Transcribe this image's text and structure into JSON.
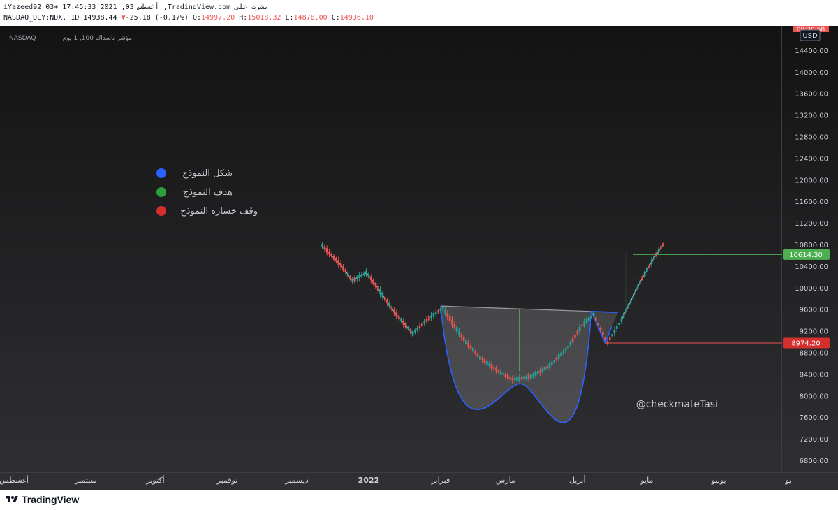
{
  "header": {
    "line1": "iYazeed92 03+ 17:45:33 2021 ,03 أغسطس ,TradingView.com نشرت على",
    "symbol": "NASDAQ_DLY:NDX, 1D",
    "last": "14938.44",
    "change_arrow": "▼",
    "change": "-25.18 (-0.17%)",
    "ohlc": [
      {
        "label": "O:",
        "value": "14997.20"
      },
      {
        "label": "H:",
        "value": "15018.32"
      },
      {
        "label": "L:",
        "value": "14878.00"
      },
      {
        "label": "C:",
        "value": "14936.10"
      }
    ]
  },
  "chart_header": {
    "exchange": "NASDAQ",
    "title": "مؤشر ناسداك 100, 1 يوم,"
  },
  "price_axis": {
    "currency": "USD",
    "time_label": "08:30:58",
    "ticks": [
      "6800.00",
      "7200.00",
      "7600.00",
      "8000.00",
      "8400.00",
      "8800.00",
      "9200.00",
      "9600.00",
      "10000.00",
      "10400.00",
      "10800.00",
      "11200.00",
      "11600.00",
      "12000.00",
      "12400.00",
      "12800.00",
      "13200.00",
      "13600.00",
      "14000.00",
      "14400.00"
    ],
    "target_label": "10614.30",
    "stop_label": "8974.20"
  },
  "time_axis": {
    "labels": [
      "أغسطس",
      "سبتمبر",
      "أكتوبر",
      "نوفمبر",
      "ديسمبر",
      "2022",
      "فبراير",
      "مارس",
      "أبريل",
      "مايو",
      "يونيو",
      "يو"
    ]
  },
  "legend": [
    {
      "label": "شكل النموذج",
      "color": "#2962ff"
    },
    {
      "label": "هدف النموذج",
      "color": "#2e9e3c"
    },
    {
      "label": "وقف خساره النموذج",
      "color": "#d32f2f"
    }
  ],
  "watermark": "@checkmateTasi",
  "footer": {
    "brand": "TradingView"
  },
  "colors": {
    "background_top": "#131313",
    "background_bottom": "#303034",
    "up": "#26a69a",
    "down": "#ef5350",
    "target": "#4caf50",
    "stop": "#ef5350",
    "pattern": "#2962ff"
  },
  "chart_data": {
    "type": "candlestick",
    "title": "مؤشر ناسداك 100, 1 يوم,",
    "symbol": "NASDAQ_DLY:NDX",
    "timeframe": "1D",
    "ylim": [
      6600,
      14700
    ],
    "x_months": [
      "أغسطس",
      "سبتمبر",
      "أكتوبر",
      "نوفمبر",
      "ديسمبر",
      "2022",
      "فبراير",
      "مارس",
      "أبريل",
      "مايو",
      "يونيو",
      "يو"
    ],
    "price_path": [
      {
        "date": "2021-12-12",
        "price": 10780
      },
      {
        "date": "2021-12-20",
        "price": 10420
      },
      {
        "date": "2021-12-25",
        "price": 10130
      },
      {
        "date": "2021-12-31",
        "price": 10280
      },
      {
        "date": "2022-01-04",
        "price": 10050
      },
      {
        "date": "2022-01-12",
        "price": 9550
      },
      {
        "date": "2022-01-20",
        "price": 9150
      },
      {
        "date": "2022-01-26",
        "price": 9400
      },
      {
        "date": "2022-02-02",
        "price": 9620
      },
      {
        "date": "2022-02-10",
        "price": 9100
      },
      {
        "date": "2022-02-18",
        "price": 8700
      },
      {
        "date": "2022-02-26",
        "price": 8450
      },
      {
        "date": "2022-03-04",
        "price": 8300
      },
      {
        "date": "2022-03-12",
        "price": 8350
      },
      {
        "date": "2022-03-20",
        "price": 8550
      },
      {
        "date": "2022-03-28",
        "price": 8900
      },
      {
        "date": "2022-04-03",
        "price": 9300
      },
      {
        "date": "2022-04-08",
        "price": 9500
      },
      {
        "date": "2022-04-12",
        "price": 9150
      },
      {
        "date": "2022-04-14",
        "price": 8980
      },
      {
        "date": "2022-04-20",
        "price": 9400
      },
      {
        "date": "2022-04-28",
        "price": 10100
      },
      {
        "date": "2022-05-04",
        "price": 10550
      },
      {
        "date": "2022-05-08",
        "price": 10800
      }
    ],
    "annotations": {
      "cup_rim": [
        {
          "date": "2022-02-01",
          "price": 9660
        },
        {
          "date": "2022-04-07",
          "price": 9560
        }
      ],
      "cup_bottom": {
        "date": "2022-03-07",
        "price": 8220
      },
      "handle_bottom": {
        "date": "2022-04-13",
        "price": 8970
      },
      "cup_depth_marker": {
        "date": "2022-03-07",
        "from": 8450,
        "to": 9600
      },
      "target_marker": {
        "date": "2022-04-22",
        "from": 9510,
        "to": 10660
      },
      "target_price": 10614.3,
      "stop_price": 8974.2
    }
  }
}
